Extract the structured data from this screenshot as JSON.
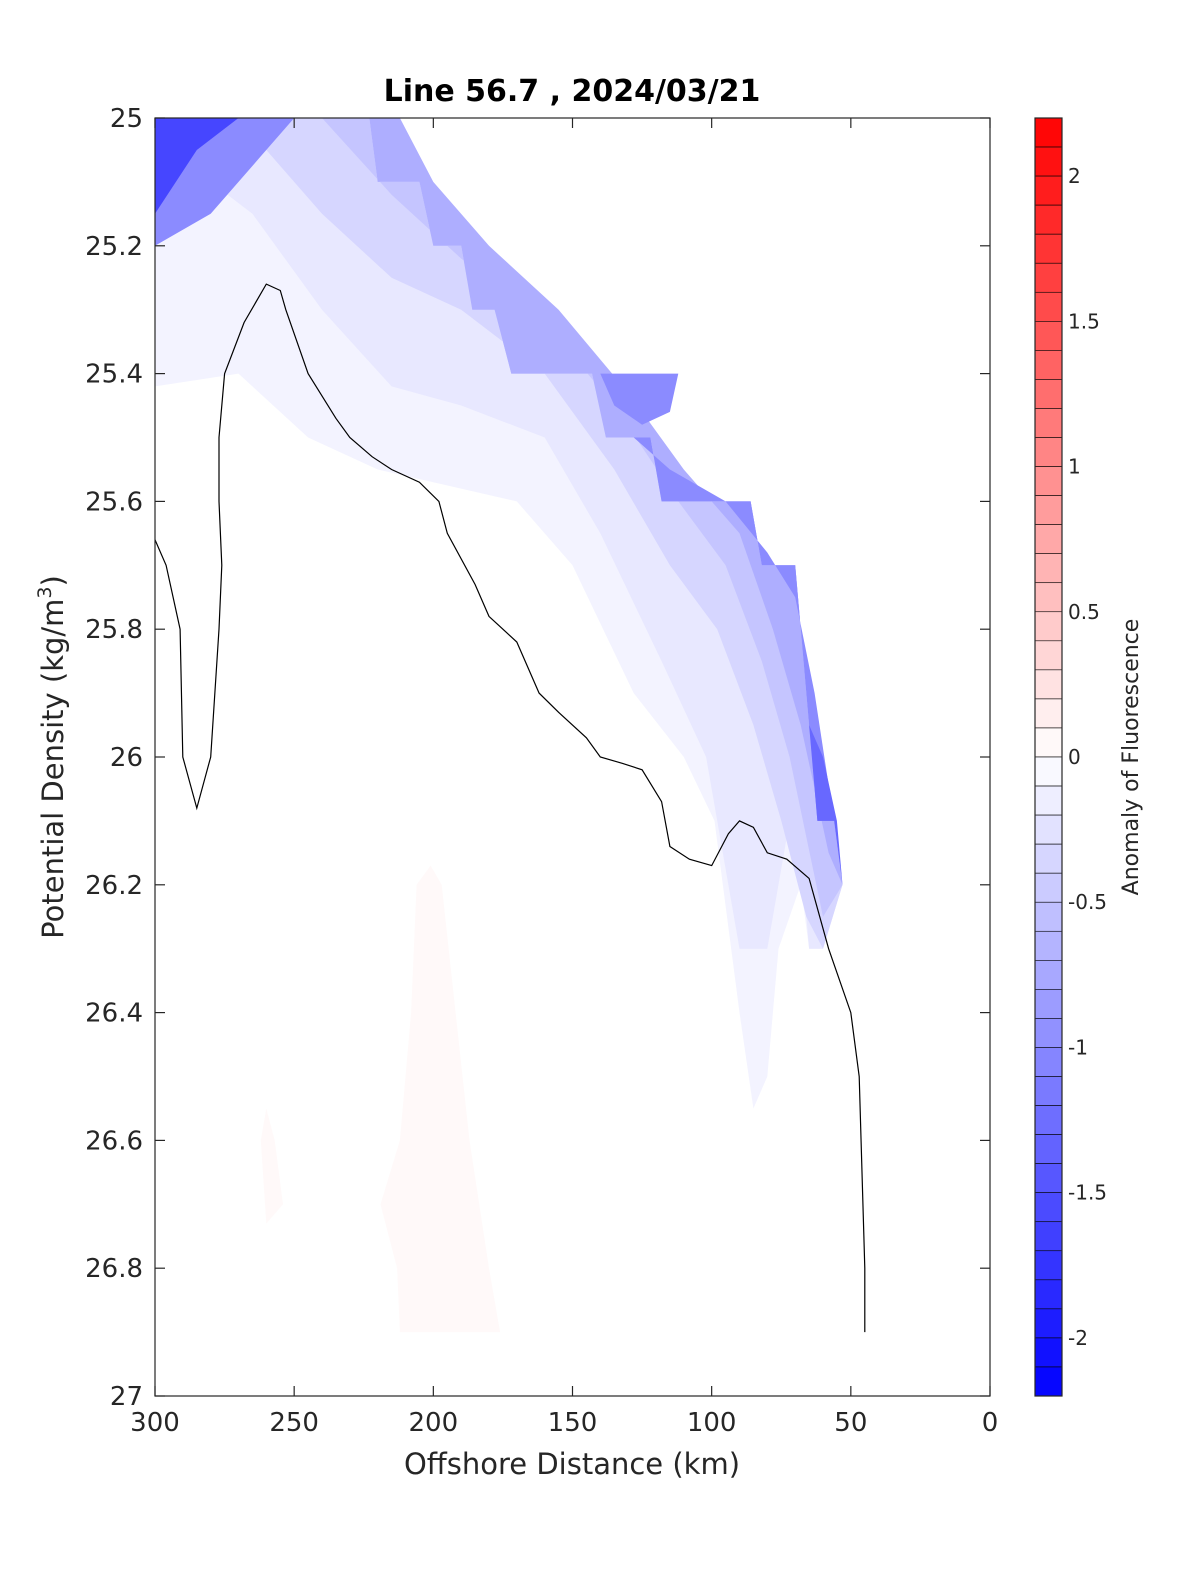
{
  "chart_data": {
    "type": "contour",
    "title": "Line 56.7 , 2024/03/21",
    "xlabel": "Offshore Distance (km)",
    "ylabel": "Potential Density (kg/m",
    "ylabel_sup": "3",
    "ylabel_close": ")",
    "xlim": [
      300,
      0
    ],
    "ylim": [
      25,
      27
    ],
    "y_reversed": true,
    "x_reversed": true,
    "xticks": [
      300,
      250,
      200,
      150,
      100,
      50,
      0
    ],
    "xtick_labels": [
      "300",
      "250",
      "200",
      "150",
      "100",
      "50",
      "0"
    ],
    "yticks": [
      25,
      25.2,
      25.4,
      25.6,
      25.8,
      26,
      26.2,
      26.4,
      26.6,
      26.8,
      27
    ],
    "ytick_labels": [
      "25",
      "25.2",
      "25.4",
      "25.6",
      "25.8",
      "26",
      "26.2",
      "26.4",
      "26.6",
      "26.8",
      "27"
    ],
    "colorbar": {
      "label": "Anomaly of Fluorescence",
      "range": [
        -2.2,
        2.2
      ],
      "step": 0.1,
      "ticks": [
        2,
        1.5,
        1,
        0.5,
        0,
        -0.5,
        -1,
        -1.5,
        -2
      ],
      "tick_labels": [
        "2",
        "1.5",
        "1",
        "0.5",
        "0",
        "-0.5",
        "-1",
        "-1.5",
        "-2"
      ],
      "colormap": "blue-white-red",
      "neg_color": "#0000ff",
      "pos_color": "#ff0000",
      "mid_color": "#ffffff"
    },
    "data_mask": [
      [
        300,
        25
      ],
      [
        223,
        25
      ],
      [
        220,
        25.1
      ],
      [
        205,
        25.1
      ],
      [
        200,
        25.2
      ],
      [
        190,
        25.2
      ],
      [
        186,
        25.3
      ],
      [
        178,
        25.3
      ],
      [
        172,
        25.4
      ],
      [
        143,
        25.4
      ],
      [
        138,
        25.5
      ],
      [
        122,
        25.5
      ],
      [
        118,
        25.6
      ],
      [
        86,
        25.6
      ],
      [
        82,
        25.7
      ],
      [
        70,
        25.7
      ],
      [
        62,
        26.1
      ],
      [
        56,
        26.1
      ],
      [
        53,
        26.2
      ],
      [
        60,
        26.3
      ],
      [
        65,
        26.3
      ],
      [
        75,
        26.55
      ],
      [
        85,
        26.5
      ],
      [
        95,
        26.3
      ],
      [
        120,
        26.0
      ],
      [
        160,
        25.75
      ],
      [
        200,
        25.6
      ],
      [
        250,
        25.5
      ],
      [
        300,
        25.45
      ]
    ],
    "filled_regions": [
      {
        "level": -0.1,
        "polygon": [
          [
            300,
            25
          ],
          [
            223,
            25
          ],
          [
            220,
            25.1
          ],
          [
            205,
            25.1
          ],
          [
            200,
            25.2
          ],
          [
            190,
            25.2
          ],
          [
            186,
            25.3
          ],
          [
            178,
            25.3
          ],
          [
            172,
            25.4
          ],
          [
            143,
            25.4
          ],
          [
            138,
            25.5
          ],
          [
            122,
            25.5
          ],
          [
            118,
            25.6
          ],
          [
            86,
            25.6
          ],
          [
            82,
            25.7
          ],
          [
            70,
            25.7
          ],
          [
            62,
            26.1
          ],
          [
            56,
            26.1
          ],
          [
            53,
            26.2
          ],
          [
            60,
            26.3
          ],
          [
            65,
            26.3
          ],
          [
            68,
            26.2
          ],
          [
            76,
            26.3
          ],
          [
            80,
            26.5
          ],
          [
            85,
            26.55
          ],
          [
            90,
            26.4
          ],
          [
            99,
            26.1
          ],
          [
            110,
            26.0
          ],
          [
            128,
            25.9
          ],
          [
            150,
            25.7
          ],
          [
            170,
            25.6
          ],
          [
            200,
            25.57
          ],
          [
            220,
            25.55
          ],
          [
            245,
            25.5
          ],
          [
            270,
            25.4
          ],
          [
            300,
            25.42
          ]
        ]
      },
      {
        "level": -0.2,
        "polygon": [
          [
            300,
            25
          ],
          [
            223,
            25
          ],
          [
            220,
            25.1
          ],
          [
            205,
            25.1
          ],
          [
            200,
            25.2
          ],
          [
            190,
            25.2
          ],
          [
            186,
            25.3
          ],
          [
            178,
            25.3
          ],
          [
            172,
            25.4
          ],
          [
            143,
            25.4
          ],
          [
            138,
            25.5
          ],
          [
            122,
            25.5
          ],
          [
            118,
            25.6
          ],
          [
            86,
            25.6
          ],
          [
            82,
            25.7
          ],
          [
            70,
            25.7
          ],
          [
            62,
            26.1
          ],
          [
            56,
            26.1
          ],
          [
            53,
            26.2
          ],
          [
            60,
            26.3
          ],
          [
            65,
            26.3
          ],
          [
            70,
            26.05
          ],
          [
            80,
            26.3
          ],
          [
            90,
            26.3
          ],
          [
            102,
            26.0
          ],
          [
            118,
            25.85
          ],
          [
            140,
            25.65
          ],
          [
            160,
            25.5
          ],
          [
            190,
            25.45
          ],
          [
            215,
            25.42
          ],
          [
            240,
            25.3
          ],
          [
            265,
            25.15
          ],
          [
            280,
            25.1
          ],
          [
            300,
            25.05
          ]
        ]
      },
      {
        "level": -0.35,
        "polygon": [
          [
            300,
            25
          ],
          [
            223,
            25
          ],
          [
            220,
            25.1
          ],
          [
            205,
            25.1
          ],
          [
            200,
            25.2
          ],
          [
            190,
            25.2
          ],
          [
            186,
            25.3
          ],
          [
            178,
            25.3
          ],
          [
            172,
            25.4
          ],
          [
            143,
            25.4
          ],
          [
            138,
            25.5
          ],
          [
            122,
            25.5
          ],
          [
            118,
            25.6
          ],
          [
            86,
            25.6
          ],
          [
            82,
            25.7
          ],
          [
            70,
            25.7
          ],
          [
            62,
            26.1
          ],
          [
            56,
            26.1
          ],
          [
            53,
            26.2
          ],
          [
            60,
            26.3
          ],
          [
            66,
            26.25
          ],
          [
            75,
            26.1
          ],
          [
            85,
            25.95
          ],
          [
            98,
            25.8
          ],
          [
            115,
            25.7
          ],
          [
            135,
            25.55
          ],
          [
            160,
            25.4
          ],
          [
            190,
            25.3
          ],
          [
            215,
            25.25
          ],
          [
            240,
            25.15
          ],
          [
            260,
            25.05
          ],
          [
            280,
            25.0
          ],
          [
            300,
            25.0
          ]
        ]
      },
      {
        "level": -0.5,
        "polygon": [
          [
            223,
            25
          ],
          [
            220,
            25.1
          ],
          [
            205,
            25.1
          ],
          [
            200,
            25.2
          ],
          [
            190,
            25.2
          ],
          [
            186,
            25.3
          ],
          [
            178,
            25.3
          ],
          [
            172,
            25.4
          ],
          [
            143,
            25.4
          ],
          [
            138,
            25.5
          ],
          [
            122,
            25.5
          ],
          [
            118,
            25.6
          ],
          [
            86,
            25.6
          ],
          [
            82,
            25.7
          ],
          [
            70,
            25.7
          ],
          [
            62,
            26.1
          ],
          [
            56,
            26.1
          ],
          [
            53,
            26.2
          ],
          [
            60,
            26.25
          ],
          [
            72,
            26.0
          ],
          [
            82,
            25.85
          ],
          [
            95,
            25.7
          ],
          [
            112,
            25.6
          ],
          [
            135,
            25.45
          ],
          [
            160,
            25.32
          ],
          [
            190,
            25.22
          ],
          [
            215,
            25.12
          ],
          [
            240,
            25.0
          ]
        ]
      },
      {
        "level": -0.7,
        "polygon": [
          [
            223,
            25
          ],
          [
            220,
            25.1
          ],
          [
            205,
            25.1
          ],
          [
            200,
            25.2
          ],
          [
            190,
            25.2
          ],
          [
            186,
            25.3
          ],
          [
            178,
            25.3
          ],
          [
            172,
            25.4
          ],
          [
            143,
            25.4
          ],
          [
            138,
            25.5
          ],
          [
            122,
            25.5
          ],
          [
            118,
            25.6
          ],
          [
            86,
            25.6
          ],
          [
            82,
            25.7
          ],
          [
            70,
            25.7
          ],
          [
            62,
            26.1
          ],
          [
            56,
            26.1
          ],
          [
            53,
            26.2
          ],
          [
            58,
            26.15
          ],
          [
            68,
            25.95
          ],
          [
            78,
            25.8
          ],
          [
            90,
            25.65
          ],
          [
            110,
            25.55
          ],
          [
            130,
            25.43
          ],
          [
            155,
            25.3
          ],
          [
            180,
            25.2
          ],
          [
            200,
            25.1
          ],
          [
            212,
            25.0
          ]
        ]
      },
      {
        "level": -1.0,
        "polygon": [
          [
            138,
            25.5
          ],
          [
            122,
            25.5
          ],
          [
            118,
            25.6
          ],
          [
            86,
            25.6
          ],
          [
            82,
            25.7
          ],
          [
            70,
            25.7
          ],
          [
            62,
            26.1
          ],
          [
            56,
            26.1
          ],
          [
            53,
            26.2
          ],
          [
            56,
            26.1
          ],
          [
            63,
            25.9
          ],
          [
            70,
            25.75
          ],
          [
            80,
            25.68
          ],
          [
            95,
            25.6
          ],
          [
            115,
            25.55
          ],
          [
            128,
            25.5
          ]
        ]
      },
      {
        "level": -1.3,
        "polygon": [
          [
            62,
            26.1
          ],
          [
            56,
            26.1
          ],
          [
            53,
            26.2
          ],
          [
            55,
            26.1
          ],
          [
            60,
            26.0
          ],
          [
            65,
            25.95
          ]
        ]
      },
      {
        "level": -1.0,
        "polygon": [
          [
            300,
            25
          ],
          [
            250,
            25
          ],
          [
            262,
            25.06
          ],
          [
            280,
            25.15
          ],
          [
            300,
            25.2
          ]
        ]
      },
      {
        "level": -1.6,
        "polygon": [
          [
            300,
            25
          ],
          [
            270,
            25
          ],
          [
            285,
            25.05
          ],
          [
            300,
            25.15
          ]
        ]
      },
      {
        "level": -1.0,
        "polygon": [
          [
            140,
            25.4
          ],
          [
            112,
            25.4
          ],
          [
            115,
            25.46
          ],
          [
            125,
            25.48
          ],
          [
            135,
            25.45
          ]
        ]
      },
      {
        "level": 0.05,
        "polygon": [
          [
            201,
            26.17
          ],
          [
            197,
            26.2
          ],
          [
            192,
            26.4
          ],
          [
            187,
            26.6
          ],
          [
            180,
            26.8
          ],
          [
            176,
            26.9
          ],
          [
            212,
            26.9
          ],
          [
            213,
            26.8
          ],
          [
            219,
            26.7
          ],
          [
            212,
            26.6
          ],
          [
            208,
            26.4
          ],
          [
            206,
            26.2
          ]
        ]
      },
      {
        "level": 0.05,
        "polygon": [
          [
            260,
            26.55
          ],
          [
            257,
            26.6
          ],
          [
            254,
            26.7
          ],
          [
            260,
            26.73
          ],
          [
            262,
            26.6
          ]
        ]
      }
    ],
    "zero_contours": [
      [
        [
          300,
          25.66
        ],
        [
          296,
          25.7
        ],
        [
          291,
          25.8
        ],
        [
          290,
          26.0
        ],
        [
          285,
          26.08
        ],
        [
          280,
          26.0
        ],
        [
          277,
          25.8
        ],
        [
          276,
          25.7
        ],
        [
          277,
          25.6
        ],
        [
          277,
          25.5
        ],
        [
          275,
          25.4
        ],
        [
          268,
          25.32
        ],
        [
          260,
          25.26
        ],
        [
          255,
          25.27
        ],
        [
          253,
          25.3
        ],
        [
          245,
          25.4
        ],
        [
          235,
          25.47
        ],
        [
          230,
          25.5
        ],
        [
          222,
          25.53
        ],
        [
          215,
          25.55
        ],
        [
          205,
          25.57
        ],
        [
          198,
          25.6
        ],
        [
          195,
          25.65
        ],
        [
          185,
          25.73
        ],
        [
          180,
          25.78
        ],
        [
          175,
          25.8
        ],
        [
          170,
          25.82
        ],
        [
          162,
          25.9
        ],
        [
          155,
          25.93
        ],
        [
          145,
          25.97
        ],
        [
          140,
          26.0
        ],
        [
          132,
          26.01
        ],
        [
          125,
          26.02
        ],
        [
          118,
          26.07
        ],
        [
          115,
          26.14
        ],
        [
          108,
          26.16
        ],
        [
          100,
          26.17
        ],
        [
          94,
          26.12
        ],
        [
          90,
          26.1
        ],
        [
          85,
          26.11
        ],
        [
          80,
          26.15
        ],
        [
          73,
          26.16
        ],
        [
          65,
          26.19
        ],
        [
          58,
          26.3
        ],
        [
          50,
          26.4
        ],
        [
          47,
          26.5
        ],
        [
          45,
          26.8
        ],
        [
          45,
          26.9
        ]
      ]
    ]
  }
}
